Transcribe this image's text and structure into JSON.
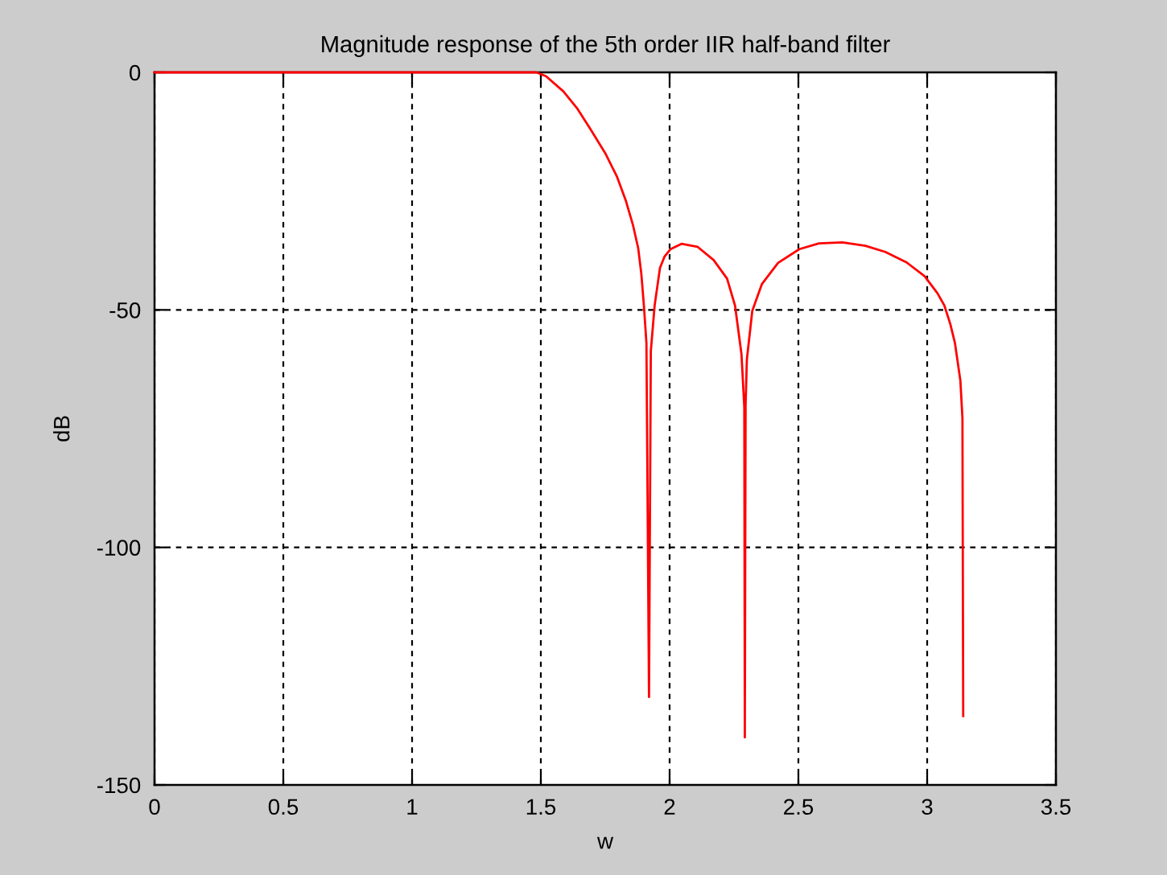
{
  "chart_data": {
    "type": "line",
    "title": "Magnitude response of the 5th order IIR half-band filter",
    "xlabel": "w",
    "ylabel": "dB",
    "xlim": [
      0,
      3.5
    ],
    "ylim": [
      -150,
      0
    ],
    "xticks": [
      0,
      0.5,
      1,
      1.5,
      2,
      2.5,
      3,
      3.5
    ],
    "yticks": [
      -150,
      -100,
      -50,
      0
    ],
    "grid": true,
    "line_style": "solid",
    "marker": "none",
    "series": [
      {
        "color": "#ff0000",
        "x": [
          0,
          0.5,
          1,
          1.3,
          1.45,
          1.483,
          1.52,
          1.5875,
          1.64,
          1.692,
          1.75,
          1.796,
          1.83,
          1.858,
          1.878,
          1.89,
          1.9,
          1.91,
          1.92,
          1.927,
          1.942,
          1.9625,
          1.98,
          2.004,
          2.046,
          2.108,
          2.171,
          2.223,
          2.254,
          2.279,
          2.29,
          2.292,
          2.295,
          2.3,
          2.321,
          2.358,
          2.421,
          2.504,
          2.58,
          2.671,
          2.76,
          2.8375,
          2.92,
          2.99,
          3.04,
          3.067,
          3.09,
          3.108,
          3.129,
          3.137,
          3.14
        ],
        "values": [
          0,
          0,
          0,
          0,
          0,
          0,
          -0.8,
          -4,
          -7.5,
          -11.9,
          -17,
          -22,
          -27,
          -32.2,
          -37,
          -42.3,
          -49,
          -57,
          -131.5,
          -58.7,
          -49,
          -41.2,
          -38.8,
          -37.2,
          -36.1,
          -36.7,
          -39.5,
          -43.4,
          -49.1,
          -59.3,
          -70.5,
          -140,
          -70,
          -60.4,
          -50.2,
          -44.6,
          -40.1,
          -37.2,
          -36,
          -35.8,
          -36.5,
          -37.8,
          -40,
          -42.9,
          -46.5,
          -49.1,
          -53,
          -57,
          -64.9,
          -72.8,
          -135.5
        ]
      }
    ]
  }
}
